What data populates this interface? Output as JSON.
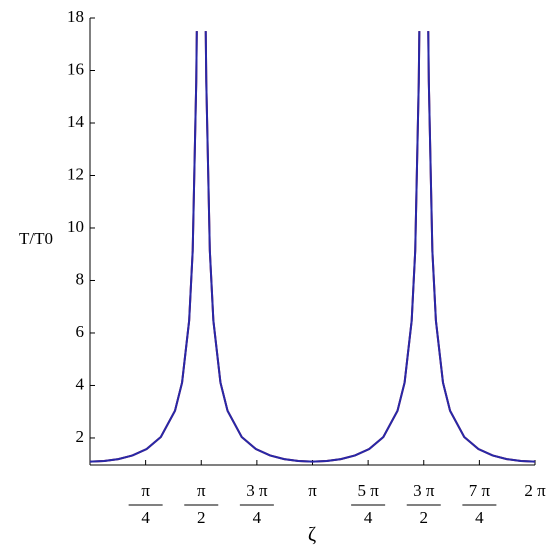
{
  "chart_data": {
    "type": "line",
    "y_label": "T/T0",
    "x_label": "ζ",
    "x": [
      0,
      0.2,
      0.4,
      0.6,
      0.8,
      1.0,
      1.2,
      1.3,
      1.4,
      1.45,
      1.5,
      1.508,
      1.571,
      1.634,
      1.642,
      1.692,
      1.742,
      1.842,
      1.942,
      2.142,
      2.342,
      2.542,
      2.742,
      2.942,
      3.142,
      3.342,
      3.542,
      3.742,
      3.942,
      4.142,
      4.342,
      4.442,
      4.542,
      4.592,
      4.642,
      4.65,
      4.712,
      4.776,
      4.784,
      4.834,
      4.884,
      4.984,
      5.084,
      5.284,
      5.484,
      5.684,
      5.884,
      6.084,
      6.283
    ],
    "series": [
      {
        "color": "#a01010",
        "values": [
          1.1,
          1.122,
          1.194,
          1.333,
          1.578,
          2.036,
          3.036,
          4.11,
          6.47,
          9.13,
          15.56,
          17.5,
          null,
          17.5,
          15.56,
          9.13,
          6.47,
          4.11,
          3.036,
          2.036,
          1.578,
          1.333,
          1.194,
          1.122,
          1.1,
          1.122,
          1.194,
          1.333,
          1.578,
          2.036,
          3.036,
          4.11,
          6.47,
          9.13,
          15.56,
          17.5,
          null,
          17.5,
          15.56,
          9.13,
          6.47,
          4.11,
          3.036,
          2.036,
          1.578,
          1.333,
          1.194,
          1.122,
          1.1
        ]
      },
      {
        "color": "#2828a8",
        "values": [
          1.1,
          1.122,
          1.194,
          1.333,
          1.578,
          2.036,
          3.036,
          4.11,
          6.47,
          9.13,
          15.56,
          17.5,
          null,
          17.5,
          15.56,
          9.13,
          6.47,
          4.11,
          3.036,
          2.036,
          1.578,
          1.333,
          1.194,
          1.122,
          1.1,
          1.122,
          1.194,
          1.333,
          1.578,
          2.036,
          3.036,
          4.11,
          6.47,
          9.13,
          15.56,
          17.5,
          null,
          17.5,
          15.56,
          9.13,
          6.47,
          4.11,
          3.036,
          2.036,
          1.578,
          1.333,
          1.194,
          1.122,
          1.1
        ]
      }
    ],
    "xlim": [
      0,
      6.2832
    ],
    "ylim": [
      0.97,
      18
    ],
    "xticks": [
      {
        "value": 0.7854,
        "label": "π/4"
      },
      {
        "value": 1.5708,
        "label": "π/2"
      },
      {
        "value": 2.3562,
        "label": "3 π/4"
      },
      {
        "value": 3.1416,
        "label": "π"
      },
      {
        "value": 3.927,
        "label": "5 π/4"
      },
      {
        "value": 4.7124,
        "label": "3 π/2"
      },
      {
        "value": 5.4978,
        "label": "7 π/4"
      },
      {
        "value": 6.2832,
        "label": "2 π"
      }
    ],
    "yticks": [
      2,
      4,
      6,
      8,
      10,
      12,
      14,
      16,
      18
    ]
  }
}
